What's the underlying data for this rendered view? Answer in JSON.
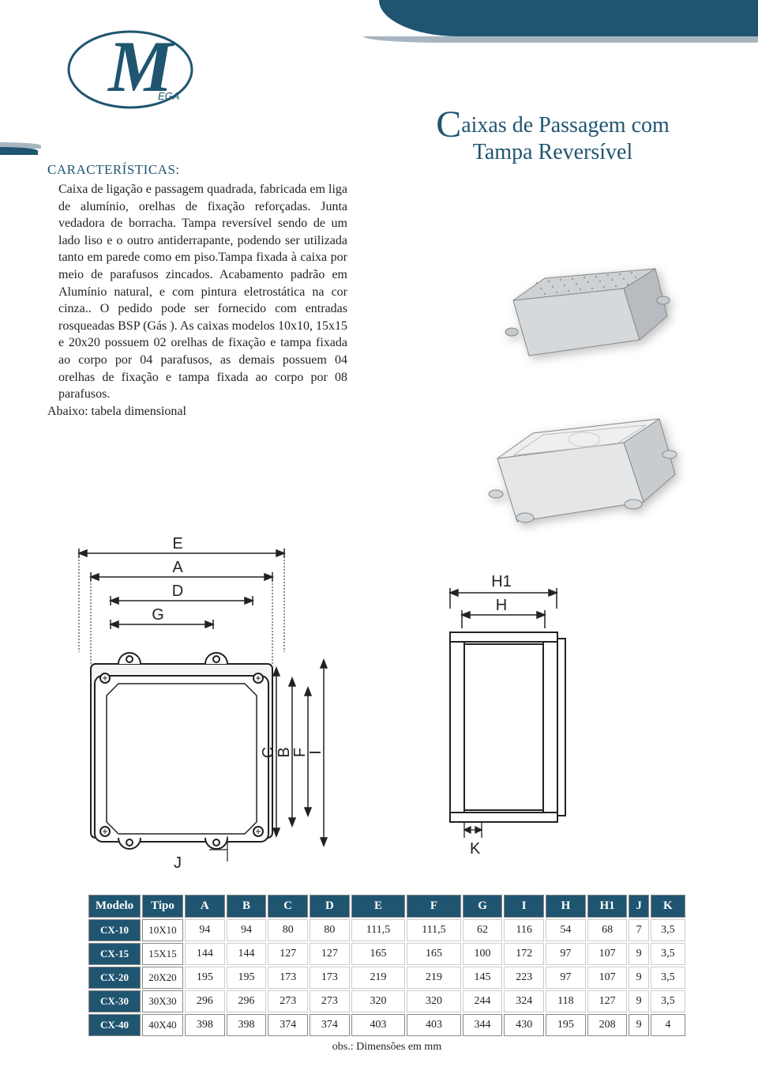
{
  "brand": {
    "logo_letter": "M",
    "logo_sub": "EGA",
    "logo_stroke": "#1f5570",
    "logo_fill": "#ffffff"
  },
  "title": {
    "first": "C",
    "rest1": "aixas de Passagem com",
    "line2": "Tampa Reversível"
  },
  "characteristics": {
    "heading": "CARACTERÍSTICAS:",
    "body": "Caixa de ligação e passagem quadrada, fabricada em liga de alumínio, orelhas de fixação reforçadas. Junta vedadora de borracha. Tampa reversível sendo de um lado liso e o outro antiderrapante, podendo ser utilizada tanto em parede como em piso.Tampa fixada à caixa por meio de parafusos zincados. Acabamento padrão em Alumínio natural, e com pintura eletrostática na cor cinza.. O pedido pode ser fornecido com entradas rosqueadas BSP (Gás ). As caixas modelos 10x10, 15x15 e 20x20 possuem 02 orelhas de fixação e tampa fixada ao corpo por 04 parafusos, as demais possuem 04 orelhas de fixação e tampa fixada ao corpo por 08 parafusos.",
    "footer": "Abaixo: tabela dimensional"
  },
  "diagram": {
    "top_labels": {
      "E": "E",
      "A": "A",
      "D": "D",
      "G": "G",
      "J": "J"
    },
    "side_labels": {
      "C": "C",
      "B": "B",
      "F": "F",
      "I": "I"
    },
    "right_labels": {
      "H1": "H1",
      "H": "H",
      "K": "K"
    },
    "line_color": "#222222",
    "box_fill": "#f2f2f2"
  },
  "table": {
    "headers": [
      "Modelo",
      "Tipo",
      "A",
      "B",
      "C",
      "D",
      "E",
      "F",
      "G",
      "I",
      "H",
      "H1",
      "J",
      "K"
    ],
    "rows": [
      {
        "model": "CX-10",
        "tipo": "10X10",
        "vals": [
          "94",
          "94",
          "80",
          "80",
          "111,5",
          "111,5",
          "62",
          "116",
          "54",
          "68",
          "7",
          "3,5"
        ]
      },
      {
        "model": "CX-15",
        "tipo": "15X15",
        "vals": [
          "144",
          "144",
          "127",
          "127",
          "165",
          "165",
          "100",
          "172",
          "97",
          "107",
          "9",
          "3,5"
        ]
      },
      {
        "model": "CX-20",
        "tipo": "20X20",
        "vals": [
          "195",
          "195",
          "173",
          "173",
          "219",
          "219",
          "145",
          "223",
          "97",
          "107",
          "9",
          "3,5"
        ]
      },
      {
        "model": "CX-30",
        "tipo": "30X30",
        "vals": [
          "296",
          "296",
          "273",
          "273",
          "320",
          "320",
          "244",
          "324",
          "118",
          "127",
          "9",
          "3,5"
        ]
      },
      {
        "model": "CX-40",
        "tipo": "40X40",
        "vals": [
          "398",
          "398",
          "374",
          "374",
          "403",
          "403",
          "344",
          "430",
          "195",
          "208",
          "9",
          "4"
        ],
        "boxed": true
      }
    ],
    "note": "obs.: Dimensões em mm"
  },
  "colors": {
    "brand_blue": "#1f5570",
    "shadow": "#a7b5c0",
    "box_gray": "#d6d9db",
    "box_gray_dark": "#b8bcc0",
    "lid_gray": "#cfd2d4"
  }
}
